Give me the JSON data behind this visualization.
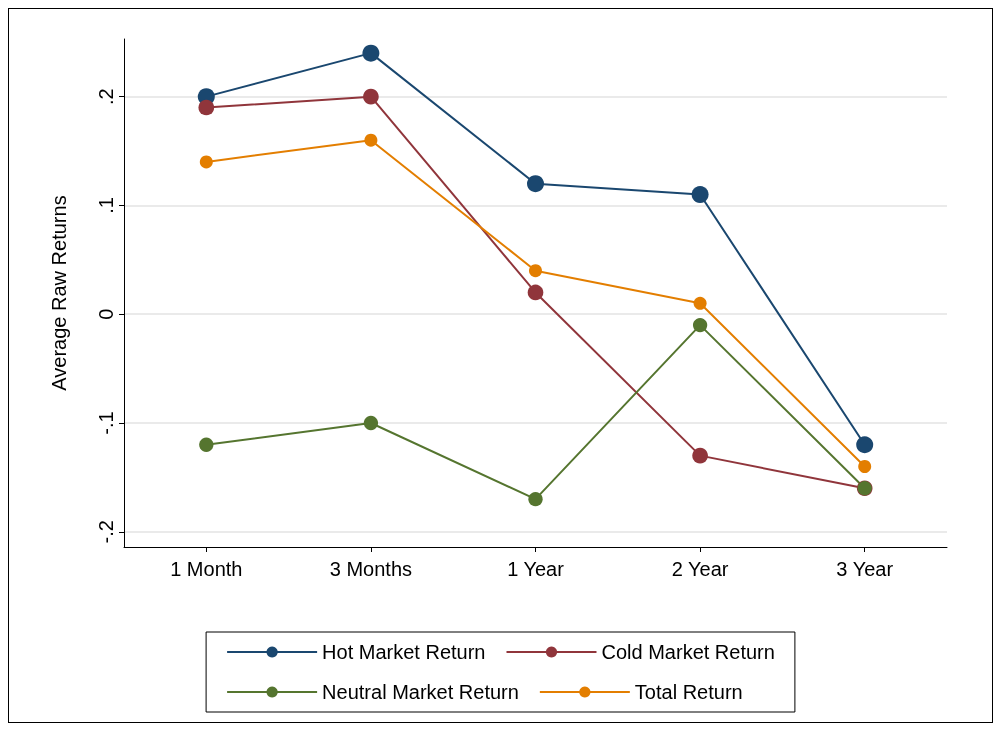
{
  "chart_data": {
    "type": "line",
    "ylabel": "Average Raw Returns",
    "categories": [
      "1 Month",
      "3 Months",
      "1 Year",
      "2 Year",
      "3 Year"
    ],
    "series": [
      {
        "name": "Hot Market Return",
        "color": "#1a476f",
        "values": [
          0.2,
          0.24,
          0.12,
          0.11,
          -0.12
        ]
      },
      {
        "name": "Cold Market Return",
        "color": "#90353b",
        "values": [
          0.19,
          0.2,
          0.02,
          -0.13,
          -0.16
        ]
      },
      {
        "name": "Neutral Market Return",
        "color": "#55752f",
        "values": [
          -0.12,
          -0.1,
          -0.17,
          -0.01,
          -0.16
        ]
      },
      {
        "name": "Total Return",
        "color": "#e37e00",
        "values": [
          0.14,
          0.16,
          0.04,
          0.01,
          -0.14
        ]
      }
    ],
    "ylim": [
      -0.214,
      0.253
    ],
    "yticks": [
      {
        "value": -0.2,
        "label": "-.2"
      },
      {
        "value": -0.1,
        "label": "-.1"
      },
      {
        "value": 0,
        "label": "0"
      },
      {
        "value": 0.1,
        "label": ".1"
      },
      {
        "value": 0.2,
        "label": ".2"
      }
    ],
    "grid": "y",
    "legend": "bottom",
    "marker": "circle",
    "line_style": "solid"
  }
}
